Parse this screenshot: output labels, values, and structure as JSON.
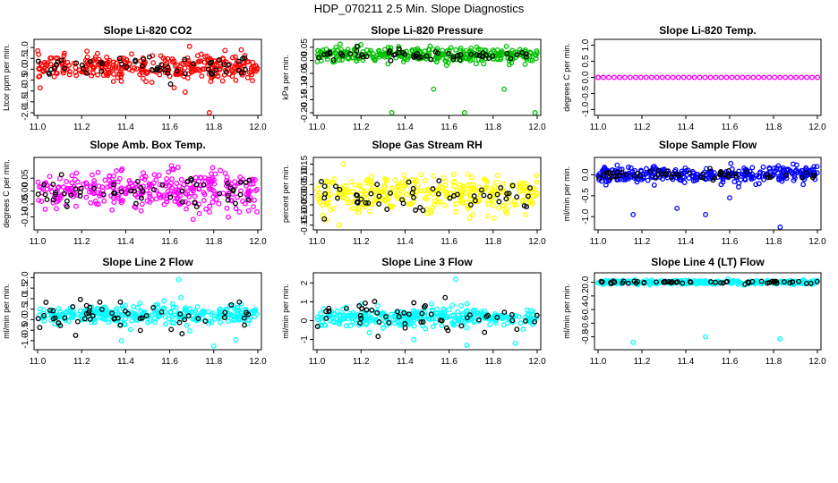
{
  "figure_title": "HDP_070211  2.5 Min. Slope Diagnostics",
  "chart_data": [
    {
      "type": "scatter",
      "title": "Slope Li-820 CO2",
      "ylabel": "Ltcor ppm per min.",
      "series_color": "#ff0000",
      "overlay_color": "#000000",
      "xlim": [
        11.0,
        12.0
      ],
      "ylim": [
        -2.0,
        1.25
      ],
      "xticks": [
        "11.0",
        "11.2",
        "11.4",
        "11.6",
        "11.8",
        "12.0"
      ],
      "yticks": [
        "-2.0",
        "-1.5",
        "-1.0",
        "-0.5",
        "0.0",
        "0.5",
        "1.0"
      ],
      "center": 0.1,
      "spread": 0.5,
      "overlay_spread": 0.45,
      "outliers": [
        [
          11.69,
          1.05
        ],
        [
          11.62,
          -0.85
        ],
        [
          11.67,
          -1.05
        ],
        [
          11.78,
          -2.0
        ],
        [
          11.38,
          -0.55
        ]
      ]
    },
    {
      "type": "scatter",
      "title": "Slope Li-820 Pressure",
      "ylabel": "kPa per min.",
      "series_color": "#00c000",
      "overlay_color": "#000000",
      "xlim": [
        11.0,
        12.0
      ],
      "ylim": [
        -0.2,
        0.07
      ],
      "xticks": [
        "11.0",
        "11.2",
        "11.4",
        "11.6",
        "11.8",
        "12.0"
      ],
      "yticks": [
        "-0.20",
        "-0.15",
        "-0.10",
        "-0.05",
        "0.00",
        "0.05"
      ],
      "center": 0.02,
      "spread": 0.025,
      "overlay_spread": 0.018,
      "outliers": [
        [
          11.34,
          -0.2
        ],
        [
          11.67,
          -0.2
        ],
        [
          11.99,
          -0.205
        ],
        [
          11.53,
          -0.11
        ],
        [
          11.85,
          -0.11
        ],
        [
          11.2,
          0.06
        ]
      ]
    },
    {
      "type": "scatter",
      "title": "Slope Li-820 Temp.",
      "ylabel": "degrees C per min.",
      "series_color": "#ff00ff",
      "overlay_color": "#000000",
      "xlim": [
        11.0,
        12.0
      ],
      "ylim": [
        -1.1,
        1.1
      ],
      "xticks": [
        "11.0",
        "11.2",
        "11.4",
        "11.6",
        "11.8",
        "12.0"
      ],
      "yticks": [
        "-1.0",
        "-0.5",
        "0.0",
        "0.5",
        "1.0"
      ],
      "center": 0.0,
      "spread": 0.0,
      "overlay_spread": 0.0,
      "outliers": []
    },
    {
      "type": "scatter",
      "title": "Slope Amb. Box Temp.",
      "ylabel": "degrees C per min.",
      "series_color": "#ff00ff",
      "overlay_color": "#000000",
      "xlim": [
        11.0,
        12.0
      ],
      "ylim": [
        -0.14,
        0.12
      ],
      "xticks": [
        "11.0",
        "11.2",
        "11.4",
        "11.6",
        "11.8",
        "12.0"
      ],
      "yticks": [
        "-0.10",
        "-0.05",
        "0.00",
        "0.05"
      ],
      "center": 0.0,
      "spread": 0.07,
      "overlay_spread": 0.05,
      "outliers": []
    },
    {
      "type": "scatter",
      "title": "Slope Gas Stream RH",
      "ylabel": "percent per min.",
      "series_color": "#ffff00",
      "overlay_color": "#000000",
      "xlim": [
        11.0,
        12.0
      ],
      "ylim": [
        -0.16,
        0.17
      ],
      "xticks": [
        "11.0",
        "11.2",
        "11.4",
        "11.6",
        "11.8",
        "12.0"
      ],
      "yticks": [
        "-0.15",
        "-0.10",
        "-0.05",
        "0.00",
        "0.05",
        "0.10",
        "0.15"
      ],
      "center": 0.0,
      "spread": 0.08,
      "overlay_spread": 0.06,
      "outliers": [
        [
          11.12,
          0.15
        ],
        [
          11.1,
          -0.15
        ]
      ]
    },
    {
      "type": "scatter",
      "title": "Slope Sample Flow",
      "ylabel": "ml/min per min.",
      "series_color": "#0000ff",
      "overlay_color": "#000000",
      "xlim": [
        11.0,
        12.0
      ],
      "ylim": [
        -1.25,
        0.35
      ],
      "xticks": [
        "11.0",
        "11.2",
        "11.4",
        "11.6",
        "11.8",
        "12.0"
      ],
      "yticks": [
        "-1.0",
        "-0.5",
        "0.0"
      ],
      "center": 0.0,
      "spread": 0.18,
      "overlay_spread": 0.1,
      "outliers": [
        [
          11.16,
          -0.95
        ],
        [
          11.49,
          -0.95
        ],
        [
          11.83,
          -1.25
        ],
        [
          11.36,
          -0.8
        ],
        [
          11.6,
          -0.55
        ]
      ]
    },
    {
      "type": "scatter",
      "title": "Slope Line 2 Flow",
      "ylabel": "ml/min per min.",
      "series_color": "#00ffff",
      "overlay_color": "#000000",
      "xlim": [
        11.0,
        12.0
      ],
      "ylim": [
        -1.3,
        2.1
      ],
      "xticks": [
        "11.0",
        "11.2",
        "11.4",
        "11.6",
        "11.8",
        "12.0"
      ],
      "yticks": [
        "-1.0",
        "-0.5",
        "0.0",
        "0.5",
        "1.0",
        "1.5",
        "2.0"
      ],
      "center": 0.2,
      "spread": 0.4,
      "overlay_spread": 0.6,
      "outliers": [
        [
          11.64,
          1.9
        ],
        [
          11.65,
          1.05
        ],
        [
          11.38,
          -1.0
        ],
        [
          11.8,
          -1.25
        ],
        [
          11.9,
          -0.95
        ]
      ]
    },
    {
      "type": "scatter",
      "title": "Slope Line 3 Flow",
      "ylabel": "ml/min per min.",
      "series_color": "#00ffff",
      "overlay_color": "#000000",
      "xlim": [
        11.0,
        12.0
      ],
      "ylim": [
        -1.4,
        2.4
      ],
      "xticks": [
        "11.0",
        "11.2",
        "11.4",
        "11.6",
        "11.8",
        "12.0"
      ],
      "yticks": [
        "-1",
        "0",
        "1",
        "2"
      ],
      "center": 0.2,
      "spread": 0.45,
      "overlay_spread": 0.65,
      "outliers": [
        [
          11.63,
          2.2
        ],
        [
          11.52,
          0.9
        ],
        [
          11.44,
          -1.0
        ],
        [
          11.68,
          -1.3
        ],
        [
          11.9,
          -1.2
        ]
      ]
    },
    {
      "type": "scatter",
      "title": "Slope Line 4 (LT) Flow",
      "ylabel": "ml/min per min.",
      "series_color": "#00ffff",
      "overlay_color": "#000000",
      "xlim": [
        11.0,
        12.0
      ],
      "ylim": [
        -0.95,
        0.1
      ],
      "xticks": [
        "11.0",
        "11.2",
        "11.4",
        "11.6",
        "11.8",
        "12.0"
      ],
      "yticks": [
        "-0.8",
        "-0.6",
        "-0.4",
        "-0.2",
        "0.0"
      ],
      "center": 0.0,
      "spread": 0.025,
      "overlay_spread": 0.02,
      "outliers": [
        [
          11.16,
          -0.88
        ],
        [
          11.49,
          -0.8
        ],
        [
          11.83,
          -0.83
        ]
      ]
    }
  ]
}
